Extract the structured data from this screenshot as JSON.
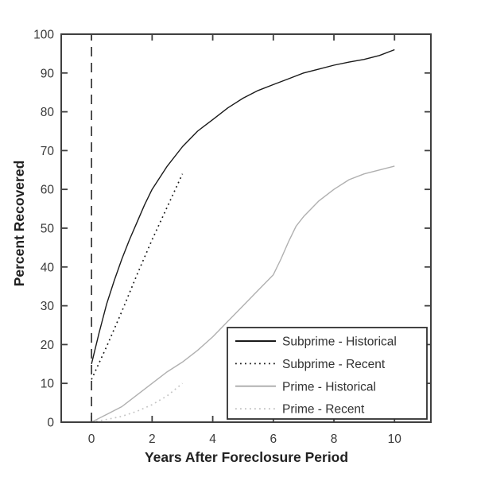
{
  "chart_data": {
    "type": "line",
    "title": "",
    "xlabel": "Years After Foreclosure Period",
    "ylabel": "Percent Recovered",
    "xlim": [
      -1,
      11.2
    ],
    "ylim": [
      0,
      100
    ],
    "xticks": [
      0,
      2,
      4,
      6,
      8,
      10
    ],
    "yticks": [
      0,
      10,
      20,
      30,
      40,
      50,
      60,
      70,
      80,
      90,
      100
    ],
    "grid": false,
    "box": true,
    "axis_color": "#3f3f3f",
    "legend": {
      "position": "lower-right-inside",
      "border_color": "#2f2f2f",
      "background": "#ffffff"
    },
    "annotations": [
      {
        "kind": "vline",
        "x": 0,
        "y_from": 0,
        "y_to": 100,
        "style": "dashed",
        "color": "#3f3f3f"
      }
    ],
    "series": [
      {
        "name": "Subprime - Historical",
        "style": "solid",
        "color": "#1a1a1a",
        "x": [
          0,
          0.25,
          0.5,
          0.75,
          1,
          1.25,
          1.5,
          1.75,
          2,
          2.5,
          3,
          3.5,
          4,
          4.5,
          5,
          5.5,
          6,
          6.5,
          7,
          7.5,
          8,
          8.5,
          9,
          9.5,
          10
        ],
        "y": [
          15,
          23,
          30.5,
          36.5,
          42,
          47,
          51.5,
          56,
          60,
          66,
          71,
          75,
          78,
          81,
          83.5,
          85.5,
          87,
          88.5,
          90,
          91,
          92,
          92.8,
          93.5,
          94.5,
          96
        ]
      },
      {
        "name": "Subprime - Recent",
        "style": "dotted",
        "color": "#1a1a1a",
        "x": [
          0,
          0.5,
          1,
          1.5,
          2,
          2.5,
          3
        ],
        "y": [
          11,
          19.5,
          28.5,
          38,
          47,
          55.5,
          64
        ]
      },
      {
        "name": "Prime - Historical",
        "style": "solid",
        "color": "#b0b0b0",
        "x": [
          0,
          0.5,
          1,
          1.5,
          2,
          2.5,
          3,
          3.5,
          4,
          4.5,
          5,
          5.5,
          6,
          6.25,
          6.5,
          6.75,
          7,
          7.5,
          8,
          8.5,
          9,
          9.5,
          10
        ],
        "y": [
          0,
          2,
          4,
          7,
          10,
          13,
          15.5,
          18.5,
          22,
          26,
          30,
          34,
          38,
          42,
          46.5,
          50.5,
          53,
          57,
          60,
          62.5,
          64,
          65,
          66
        ]
      },
      {
        "name": "Prime - Recent",
        "style": "dotted",
        "color": "#c4c4c4",
        "x": [
          0,
          0.5,
          1,
          1.5,
          2,
          2.5,
          3
        ],
        "y": [
          0,
          0.7,
          1.5,
          2.8,
          4.5,
          6.8,
          10
        ]
      }
    ]
  }
}
